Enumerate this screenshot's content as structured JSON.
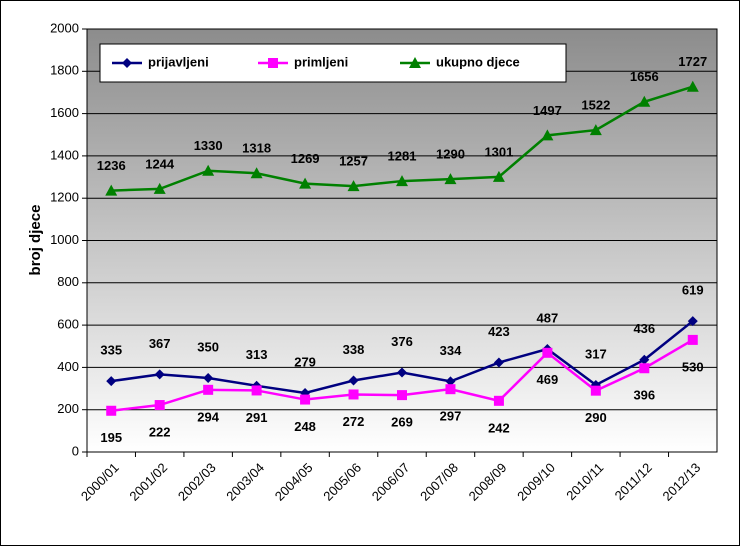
{
  "chart_data": {
    "type": "line",
    "y_label": "broj djece",
    "categories": [
      "2000/01",
      "2001/02",
      "2002/03",
      "2003/04",
      "2004/05",
      "2005/06",
      "2006/07",
      "2007/08",
      "2008/09",
      "2009/10",
      "2010/11",
      "2011/12",
      "2012/13"
    ],
    "series": [
      {
        "name": "prijavljeni",
        "color": "#000080",
        "marker": "diamond",
        "values": [
          335,
          367,
          350,
          313,
          279,
          338,
          376,
          334,
          423,
          487,
          317,
          436,
          619
        ]
      },
      {
        "name": "primljeni",
        "color": "#ff00ff",
        "marker": "square",
        "values": [
          195,
          222,
          294,
          291,
          248,
          272,
          269,
          297,
          242,
          469,
          290,
          396,
          530
        ]
      },
      {
        "name": "ukupno djece",
        "color": "#008000",
        "marker": "triangle",
        "values": [
          1236,
          1244,
          1330,
          1318,
          1269,
          1257,
          1281,
          1290,
          1301,
          1497,
          1522,
          1656,
          1727
        ]
      }
    ],
    "ylim": [
      0,
      2000
    ],
    "yticks": [
      0,
      200,
      400,
      600,
      800,
      1000,
      1200,
      1400,
      1600,
      1800,
      2000
    ],
    "grid": true,
    "legend": "top-left"
  }
}
